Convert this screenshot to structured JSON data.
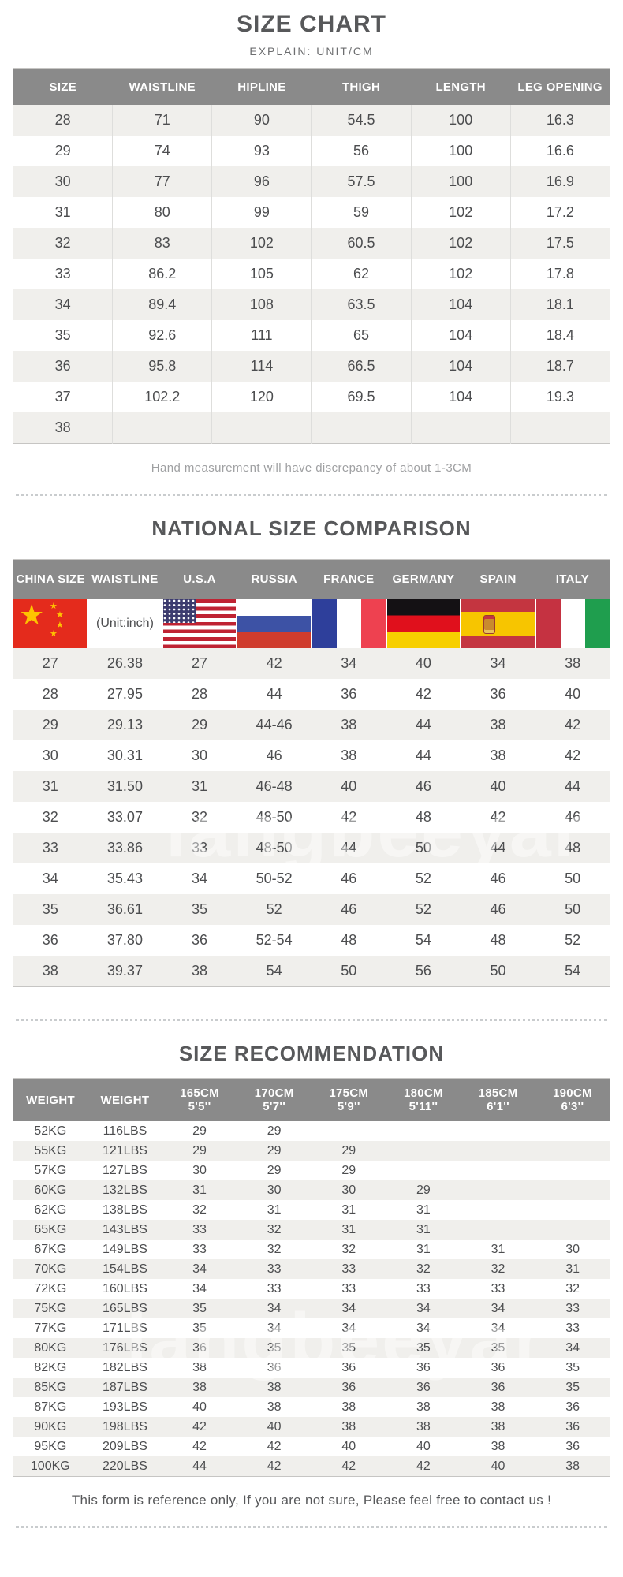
{
  "page": {
    "watermark": "langbeeyar"
  },
  "section1": {
    "title": "SIZE CHART",
    "subtitle": "EXPLAIN: UNIT/CM",
    "note": "Hand measurement will have discrepancy of about 1-3CM",
    "table": {
      "headers": [
        "SIZE",
        "WAISTLINE",
        "HIPLINE",
        "THIGH",
        "LENGTH",
        "LEG OPENING"
      ],
      "rows": [
        [
          "28",
          "71",
          "90",
          "54.5",
          "100",
          "16.3"
        ],
        [
          "29",
          "74",
          "93",
          "56",
          "100",
          "16.6"
        ],
        [
          "30",
          "77",
          "96",
          "57.5",
          "100",
          "16.9"
        ],
        [
          "31",
          "80",
          "99",
          "59",
          "102",
          "17.2"
        ],
        [
          "32",
          "83",
          "102",
          "60.5",
          "102",
          "17.5"
        ],
        [
          "33",
          "86.2",
          "105",
          "62",
          "102",
          "17.8"
        ],
        [
          "34",
          "89.4",
          "108",
          "63.5",
          "104",
          "18.1"
        ],
        [
          "35",
          "92.6",
          "111",
          "65",
          "104",
          "18.4"
        ],
        [
          "36",
          "95.8",
          "114",
          "66.5",
          "104",
          "18.7"
        ],
        [
          "37",
          "102.2",
          "120",
          "69.5",
          "104",
          "19.3"
        ],
        [
          "38",
          "",
          "",
          "",
          "",
          ""
        ]
      ]
    }
  },
  "section2": {
    "title": "NATIONAL SIZE COMPARISON",
    "table": {
      "headers": [
        "CHINA SIZE",
        "WAISTLINE",
        "U.S.A",
        "RUSSIA",
        "FRANCE",
        "GERMANY",
        "SPAIN",
        "ITALY"
      ],
      "unit_note": "(Unit:inch)",
      "flag_icons": [
        "china-flag-icon",
        "usa-flag-icon",
        "russia-flag-icon",
        "france-flag-icon",
        "germany-flag-icon",
        "spain-flag-icon",
        "italy-flag-icon"
      ],
      "rows": [
        [
          "27",
          "26.38",
          "27",
          "42",
          "34",
          "40",
          "34",
          "38"
        ],
        [
          "28",
          "27.95",
          "28",
          "44",
          "36",
          "42",
          "36",
          "40"
        ],
        [
          "29",
          "29.13",
          "29",
          "44-46",
          "38",
          "44",
          "38",
          "42"
        ],
        [
          "30",
          "30.31",
          "30",
          "46",
          "38",
          "44",
          "38",
          "42"
        ],
        [
          "31",
          "31.50",
          "31",
          "46-48",
          "40",
          "46",
          "40",
          "44"
        ],
        [
          "32",
          "33.07",
          "32",
          "48-50",
          "42",
          "48",
          "42",
          "46"
        ],
        [
          "33",
          "33.86",
          "33",
          "48-50",
          "44",
          "50",
          "44",
          "48"
        ],
        [
          "34",
          "35.43",
          "34",
          "50-52",
          "46",
          "52",
          "46",
          "50"
        ],
        [
          "35",
          "36.61",
          "35",
          "52",
          "46",
          "52",
          "46",
          "50"
        ],
        [
          "36",
          "37.80",
          "36",
          "52-54",
          "48",
          "54",
          "48",
          "52"
        ],
        [
          "38",
          "39.37",
          "38",
          "54",
          "50",
          "56",
          "50",
          "54"
        ]
      ]
    }
  },
  "section3": {
    "title": "SIZE RECOMMENDATION",
    "table": {
      "headers": [
        {
          "t": "WEIGHT",
          "b": ""
        },
        {
          "t": "WEIGHT",
          "b": ""
        },
        {
          "t": "165CM",
          "b": "5'5''"
        },
        {
          "t": "170CM",
          "b": "5'7''"
        },
        {
          "t": "175CM",
          "b": "5'9''"
        },
        {
          "t": "180CM",
          "b": "5'11''"
        },
        {
          "t": "185CM",
          "b": "6'1''"
        },
        {
          "t": "190CM",
          "b": "6'3''"
        }
      ],
      "rows": [
        [
          "52KG",
          "116LBS",
          "29",
          "29",
          "",
          "",
          "",
          ""
        ],
        [
          "55KG",
          "121LBS",
          "29",
          "29",
          "29",
          "",
          "",
          ""
        ],
        [
          "57KG",
          "127LBS",
          "30",
          "29",
          "29",
          "",
          "",
          ""
        ],
        [
          "60KG",
          "132LBS",
          "31",
          "30",
          "30",
          "29",
          "",
          ""
        ],
        [
          "62KG",
          "138LBS",
          "32",
          "31",
          "31",
          "31",
          "",
          ""
        ],
        [
          "65KG",
          "143LBS",
          "33",
          "32",
          "31",
          "31",
          "",
          ""
        ],
        [
          "67KG",
          "149LBS",
          "33",
          "32",
          "32",
          "31",
          "31",
          "30"
        ],
        [
          "70KG",
          "154LBS",
          "34",
          "33",
          "33",
          "32",
          "32",
          "31"
        ],
        [
          "72KG",
          "160LBS",
          "34",
          "33",
          "33",
          "33",
          "33",
          "32"
        ],
        [
          "75KG",
          "165LBS",
          "35",
          "34",
          "34",
          "34",
          "34",
          "33"
        ],
        [
          "77KG",
          "171LBS",
          "35",
          "34",
          "34",
          "34",
          "34",
          "33"
        ],
        [
          "80KG",
          "176LBS",
          "36",
          "35",
          "35",
          "35",
          "35",
          "34"
        ],
        [
          "82KG",
          "182LBS",
          "38",
          "36",
          "36",
          "36",
          "36",
          "35"
        ],
        [
          "85KG",
          "187LBS",
          "38",
          "38",
          "36",
          "36",
          "36",
          "35"
        ],
        [
          "87KG",
          "193LBS",
          "40",
          "38",
          "38",
          "38",
          "38",
          "36"
        ],
        [
          "90KG",
          "198LBS",
          "42",
          "40",
          "38",
          "38",
          "38",
          "36"
        ],
        [
          "95KG",
          "209LBS",
          "42",
          "42",
          "40",
          "40",
          "38",
          "36"
        ],
        [
          "100KG",
          "220LBS",
          "44",
          "42",
          "42",
          "42",
          "40",
          "38"
        ]
      ]
    }
  },
  "footer": {
    "note": "This form is reference only, If you are not sure, Please feel free to contact us !"
  },
  "colors": {
    "header_gray": "#8a8a8a",
    "row_alt_gray": "#f0efec",
    "text_dark": "#4c4d4f",
    "note_gray": "#9fa0a2"
  }
}
